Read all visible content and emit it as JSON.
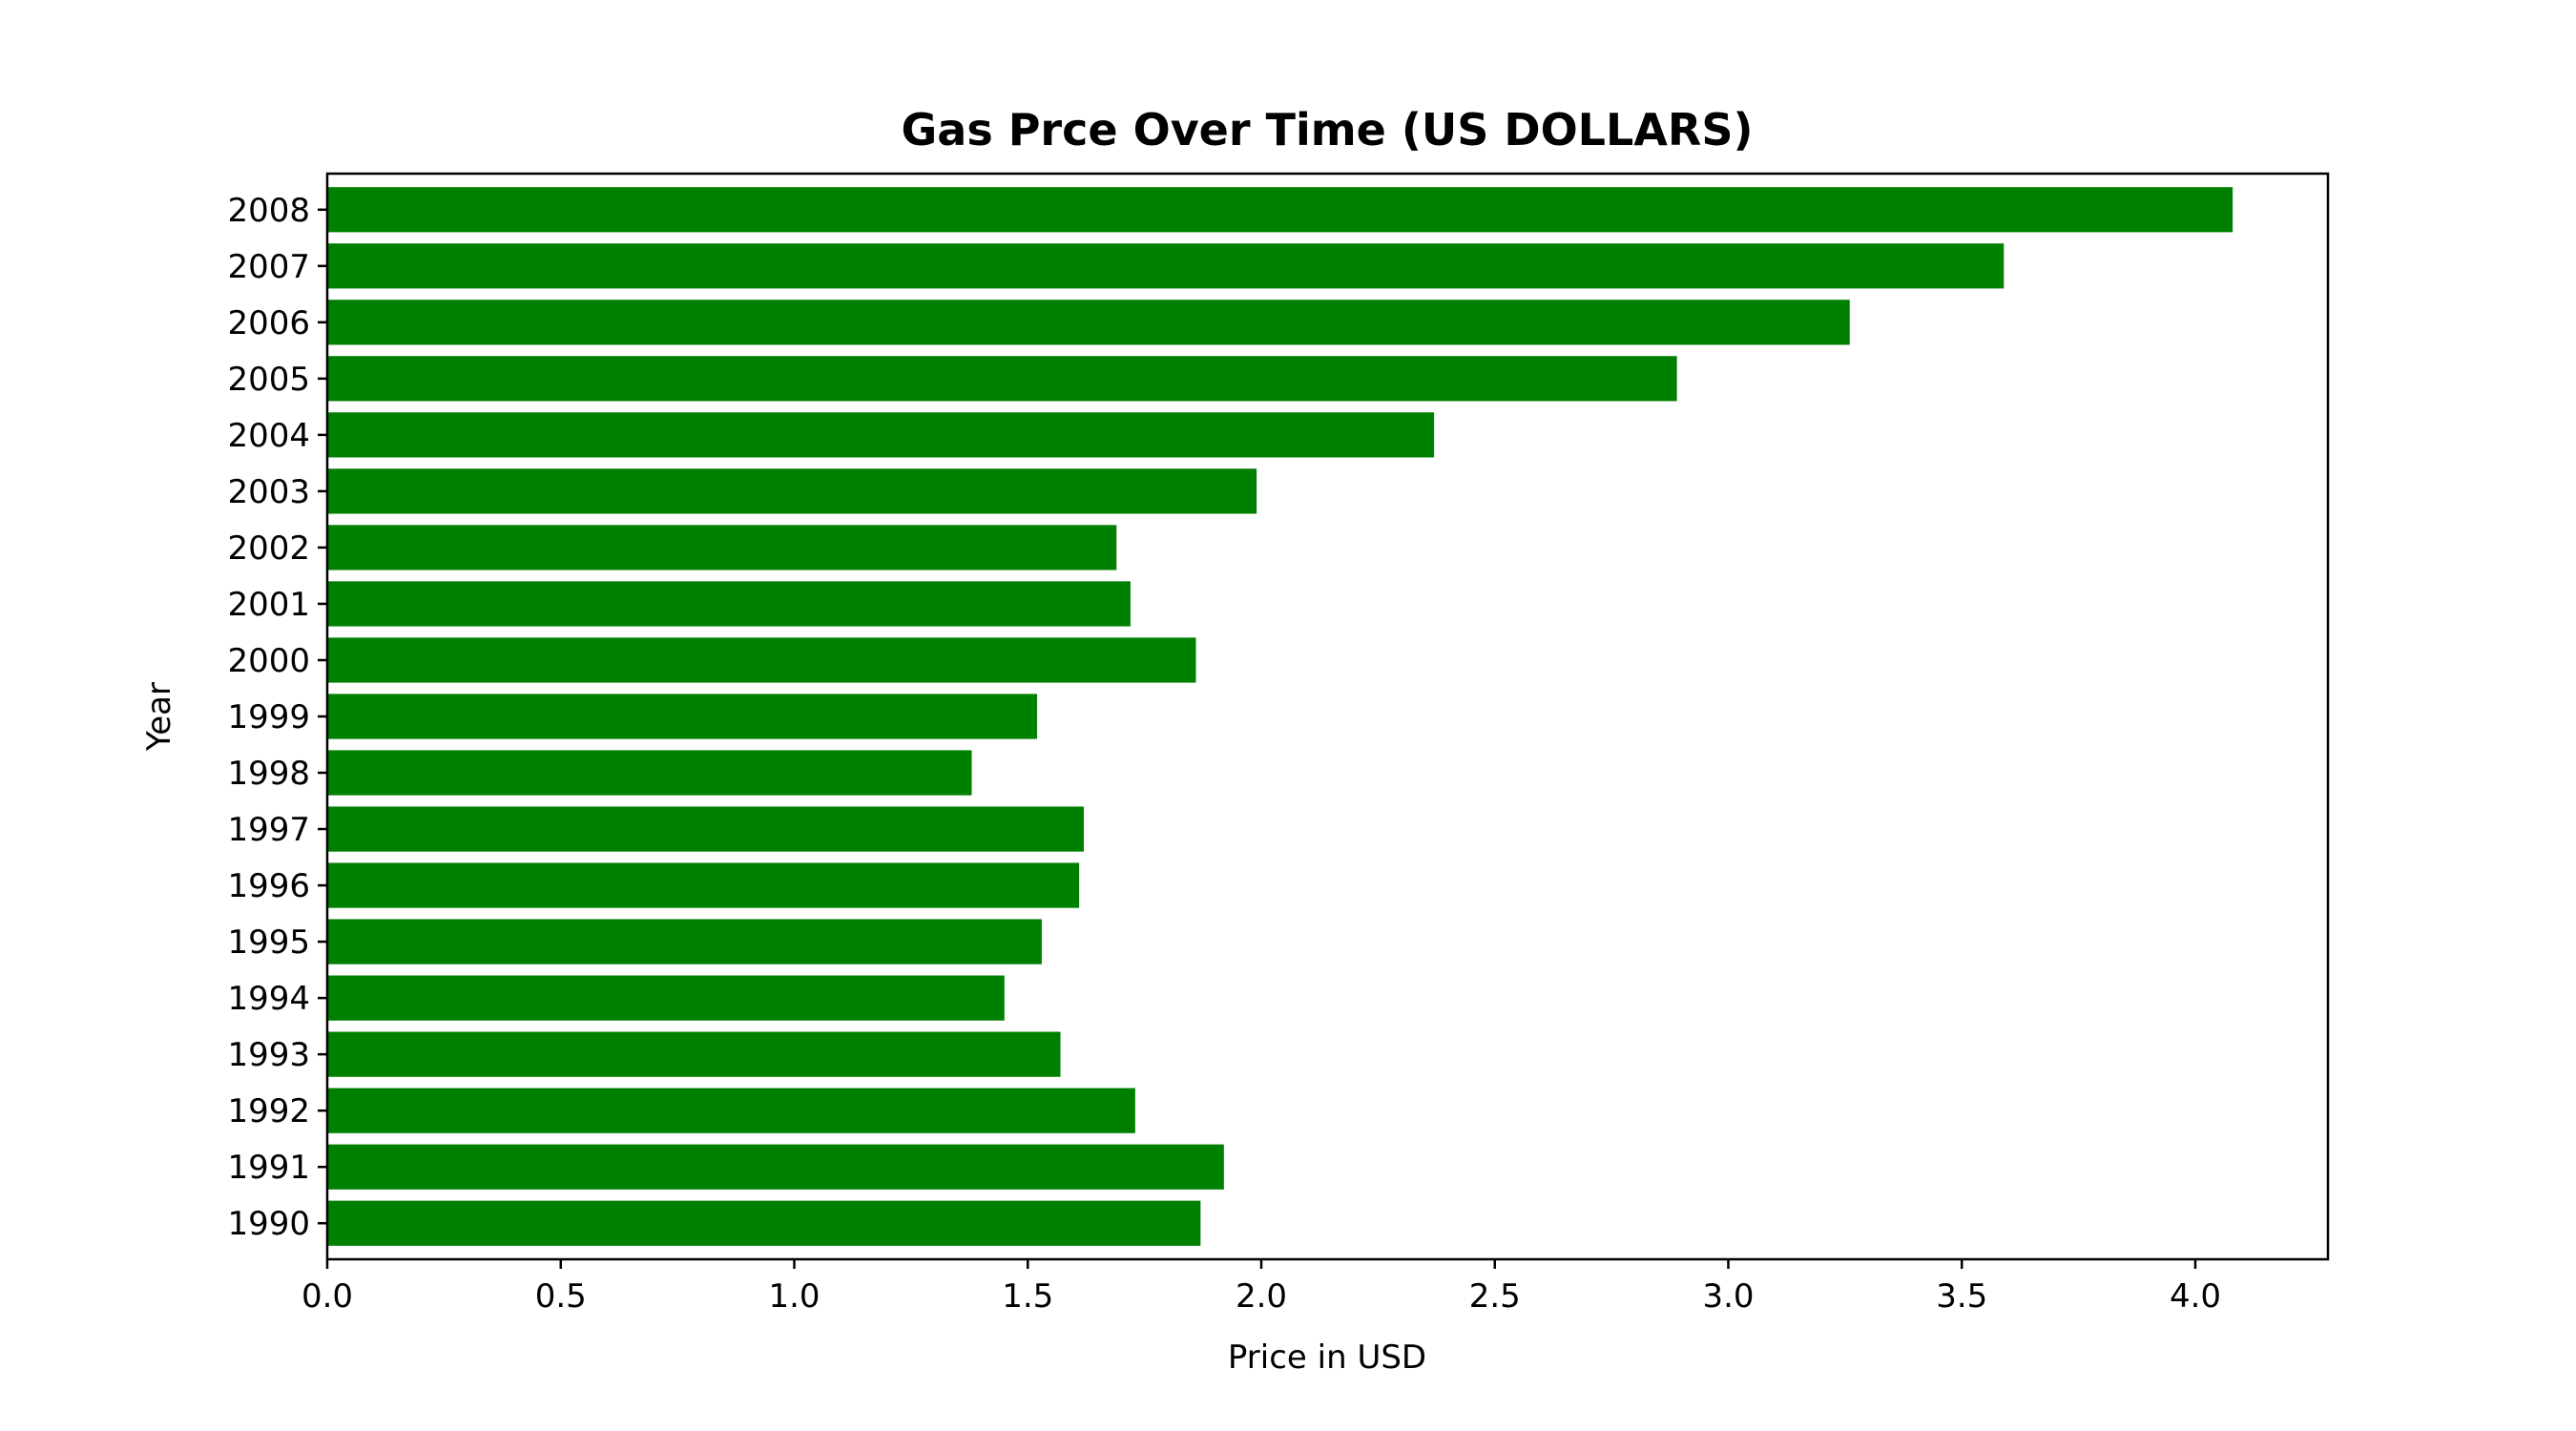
{
  "chart_data": {
    "type": "bar",
    "orientation": "horizontal",
    "title": "Gas Prce Over Time (US DOLLARS)",
    "xlabel": "Price in USD",
    "ylabel": "Year",
    "categories": [
      "1990",
      "1991",
      "1992",
      "1993",
      "1994",
      "1995",
      "1996",
      "1997",
      "1998",
      "1999",
      "2000",
      "2001",
      "2002",
      "2003",
      "2004",
      "2005",
      "2006",
      "2007",
      "2008"
    ],
    "values": [
      1.87,
      1.92,
      1.73,
      1.57,
      1.45,
      1.53,
      1.61,
      1.62,
      1.38,
      1.52,
      1.86,
      1.72,
      1.69,
      1.99,
      2.37,
      2.89,
      3.26,
      3.59,
      4.08
    ],
    "xlim": [
      0,
      4.284
    ],
    "xticks": [
      "0.0",
      "0.5",
      "1.0",
      "1.5",
      "2.0",
      "2.5",
      "3.0",
      "3.5",
      "4.0"
    ],
    "bar_color": "#008000",
    "grid": false,
    "legend": "none"
  }
}
